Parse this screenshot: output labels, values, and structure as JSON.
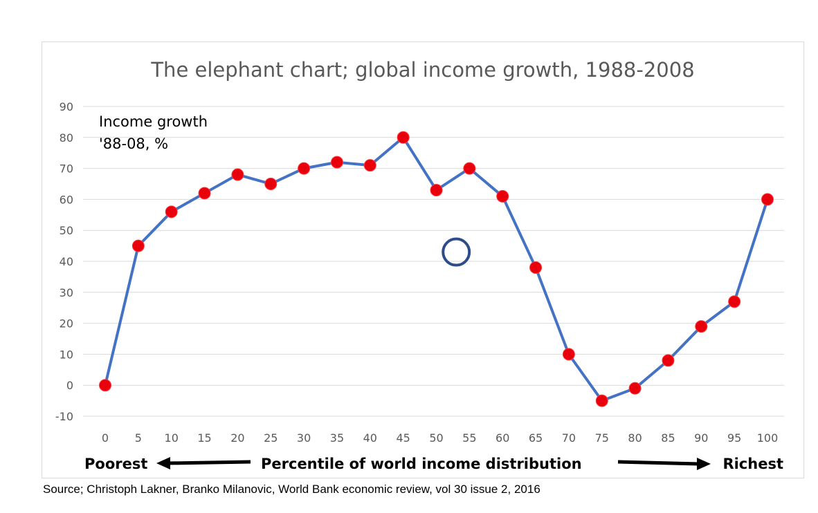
{
  "chart_data": {
    "type": "line",
    "title": "The elephant chart; global income growth, 1988-2008",
    "ylabel_lines": [
      "Income growth",
      "'88-08, %"
    ],
    "x": [
      0,
      5,
      10,
      15,
      20,
      25,
      30,
      35,
      40,
      45,
      50,
      55,
      60,
      65,
      70,
      75,
      80,
      85,
      90,
      95,
      100
    ],
    "y": [
      0,
      45,
      56,
      62,
      68,
      65,
      70,
      72,
      71,
      80,
      63,
      70,
      61,
      38,
      10,
      -5,
      -1,
      8,
      19,
      27,
      60
    ],
    "ylim": [
      -10,
      90
    ],
    "yticks": [
      90,
      80,
      70,
      60,
      50,
      40,
      30,
      20,
      10,
      0,
      -10
    ],
    "xticks": [
      "0",
      "5",
      "10",
      "15",
      "20",
      "25",
      "30",
      "35",
      "40",
      "45",
      "50",
      "55",
      "60",
      "65",
      "70",
      "75",
      "80",
      "85",
      "90",
      "95",
      "100"
    ],
    "grid": true,
    "line_color": "#4472C4",
    "marker_color": "#E8000D",
    "annotation_circle": {
      "x": 53,
      "y": 43,
      "color": "#2F4C8A"
    },
    "xaxis_caption": {
      "left": "Poorest",
      "center": "Percentile of world income distribution",
      "right": "Richest"
    }
  },
  "source": "Source; Christoph Lakner, Branko Milanovic, World Bank economic review, vol 30 issue 2, 2016"
}
